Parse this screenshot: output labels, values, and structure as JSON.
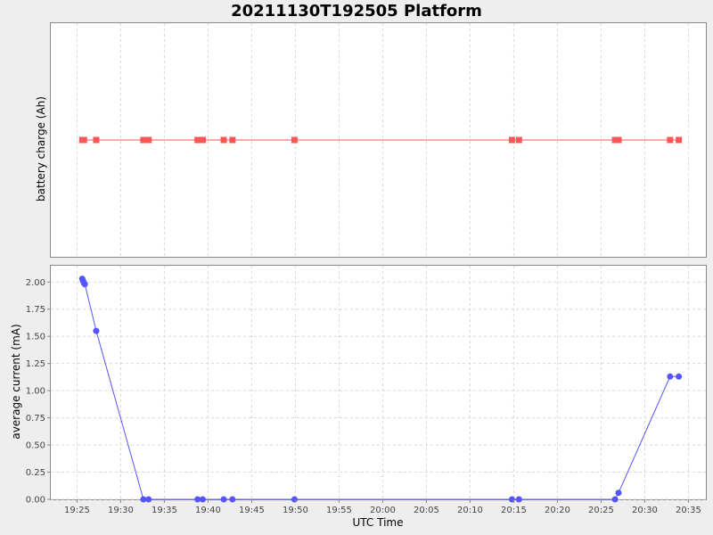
{
  "chart_data": {
    "title": "20211130T192505 Platform",
    "xlabel": "UTC Time",
    "x_ticks": [
      "19:25",
      "19:30",
      "19:35",
      "19:40",
      "19:45",
      "19:50",
      "19:55",
      "20:00",
      "20:05",
      "20:10",
      "20:15",
      "20:20",
      "20:25",
      "20:30",
      "20:35"
    ],
    "xlim": [
      "19:22:00",
      "20:37:00"
    ],
    "grid": true,
    "legend": "none",
    "panels": [
      {
        "type": "line",
        "ylabel": "battery charge (Ah)",
        "y_ticks": [],
        "color": "#ff5555",
        "marker": "square",
        "points": [
          [
            "19:25:36",
            0
          ],
          [
            "19:25:48",
            0
          ],
          [
            "19:27:12",
            0
          ],
          [
            "19:32:36",
            0
          ],
          [
            "19:33:12",
            0
          ],
          [
            "19:38:48",
            0
          ],
          [
            "19:39:24",
            0
          ],
          [
            "19:41:48",
            0
          ],
          [
            "19:42:48",
            0
          ],
          [
            "19:49:54",
            0
          ],
          [
            "20:14:48",
            0
          ],
          [
            "20:15:36",
            0
          ],
          [
            "20:26:36",
            0
          ],
          [
            "20:27:00",
            0
          ],
          [
            "20:32:54",
            0
          ],
          [
            "20:33:54",
            0
          ]
        ]
      },
      {
        "type": "line",
        "ylabel": "average current (mA)",
        "ylim": [
          0,
          2.15
        ],
        "y_ticks": [
          "0.00",
          "0.25",
          "0.50",
          "0.75",
          "1.00",
          "1.25",
          "1.50",
          "1.75",
          "2.00"
        ],
        "color": "#5555ff",
        "marker": "circle",
        "points": [
          [
            "19:25:36",
            2.03
          ],
          [
            "19:25:42",
            2.01
          ],
          [
            "19:25:48",
            1.99
          ],
          [
            "19:25:54",
            1.98
          ],
          [
            "19:27:12",
            1.55
          ],
          [
            "19:32:36",
            0.0
          ],
          [
            "19:33:12",
            0.0
          ],
          [
            "19:38:48",
            0.0
          ],
          [
            "19:39:24",
            0.0
          ],
          [
            "19:41:48",
            0.0
          ],
          [
            "19:42:48",
            0.0
          ],
          [
            "19:49:54",
            0.0
          ],
          [
            "20:14:48",
            0.0
          ],
          [
            "20:15:36",
            0.0
          ],
          [
            "20:26:36",
            0.0
          ],
          [
            "20:27:00",
            0.06
          ],
          [
            "20:32:54",
            1.13
          ],
          [
            "20:33:54",
            1.13
          ]
        ]
      }
    ]
  }
}
